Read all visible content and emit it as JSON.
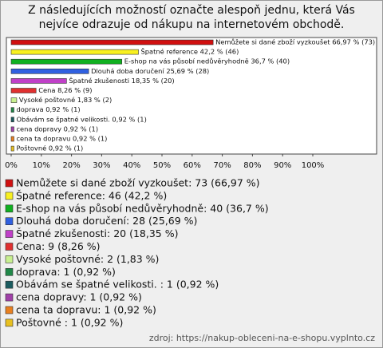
{
  "chart_data": {
    "type": "hbar",
    "title": "Z následujících možností označte alespoň jednu, která Vás nejvíce odrazuje od nákupu na internetovém obchodě.",
    "categories": [
      "Nemůžete si dané zboží vyzkoušet",
      "Špatné reference",
      "E-shop na vás působí nedůvěryhodně",
      "Dlouhá doba doručení",
      "Špatné zkušenosti",
      "Cena",
      "Vysoké poštovné",
      "doprava",
      "Obávám se špatné velikosti.",
      "cena dopravy",
      "cena ta dopravu",
      "Poštovné"
    ],
    "values": [
      66.97,
      42.2,
      36.7,
      25.69,
      18.35,
      8.26,
      1.83,
      0.92,
      0.92,
      0.92,
      0.92,
      0.92
    ],
    "value_labels": [
      "Nemůžete si dané zboží vyzkoušet 66,97 % (73)",
      "Špatné reference 42,2 % (46)",
      "E-shop na vás působí nedůvěryhodně 36,7 % (40)",
      "Dlouhá doba doručení 25,69 % (28)",
      "Špatné zkušenosti 18,35 % (20)",
      "Cena 8,26 % (9)",
      "Vysoké poštovné 1,83 % (2)",
      "doprava 0,92 % (1)",
      "Obávám se špatné velikosti.  0,92 % (1)",
      "cena dopravy 0,92 % (1)",
      "cena ta dopravu 0,92 % (1)",
      "Poštovné  0,92 % (1)"
    ],
    "legend_labels": [
      "Nemůžete si dané zboží vyzkoušet: 73 (66,97 %)",
      "Špatné reference: 46 (42,2 %)",
      "E-shop na vás působí nedůvěryhodně: 40 (36,7 %)",
      "Dlouhá doba doručení: 28 (25,69 %)",
      "Špatné zkušenosti: 20 (18,35 %)",
      "Cena: 9 (8,26 %)",
      "Vysoké poštovné: 2 (1,83 %)",
      "doprava: 1 (0,92 %)",
      "Obávám se špatné velikosti. : 1 (0,92 %)",
      "cena dopravy: 1 (0,92 %)",
      "cena ta dopravu: 1 (0,92 %)",
      "Poštovné : 1 (0,92 %)"
    ],
    "colors": [
      "#d01010",
      "#f8f020",
      "#10b020",
      "#3060e0",
      "#c040c8",
      "#e03030",
      "#c8f090",
      "#208848",
      "#1c5c60",
      "#a040a8",
      "#e88020",
      "#e8c020"
    ],
    "xlim": [
      0,
      100
    ],
    "xticks": [
      {
        "value": 0,
        "label": "0%"
      },
      {
        "value": 10,
        "label": "10%"
      },
      {
        "value": 20,
        "label": "20%"
      },
      {
        "value": 30,
        "label": "30%"
      },
      {
        "value": 40,
        "label": "40%"
      },
      {
        "value": 50,
        "label": "50%"
      },
      {
        "value": 60,
        "label": "60%"
      },
      {
        "value": 70,
        "label": "70%"
      },
      {
        "value": 80,
        "label": "80%"
      },
      {
        "value": 90,
        "label": "90%"
      },
      {
        "value": 100,
        "label": "100%"
      }
    ],
    "source": "zdroj: https://nakup-obleceni-na-e-shopu.vyplnto.cz"
  }
}
